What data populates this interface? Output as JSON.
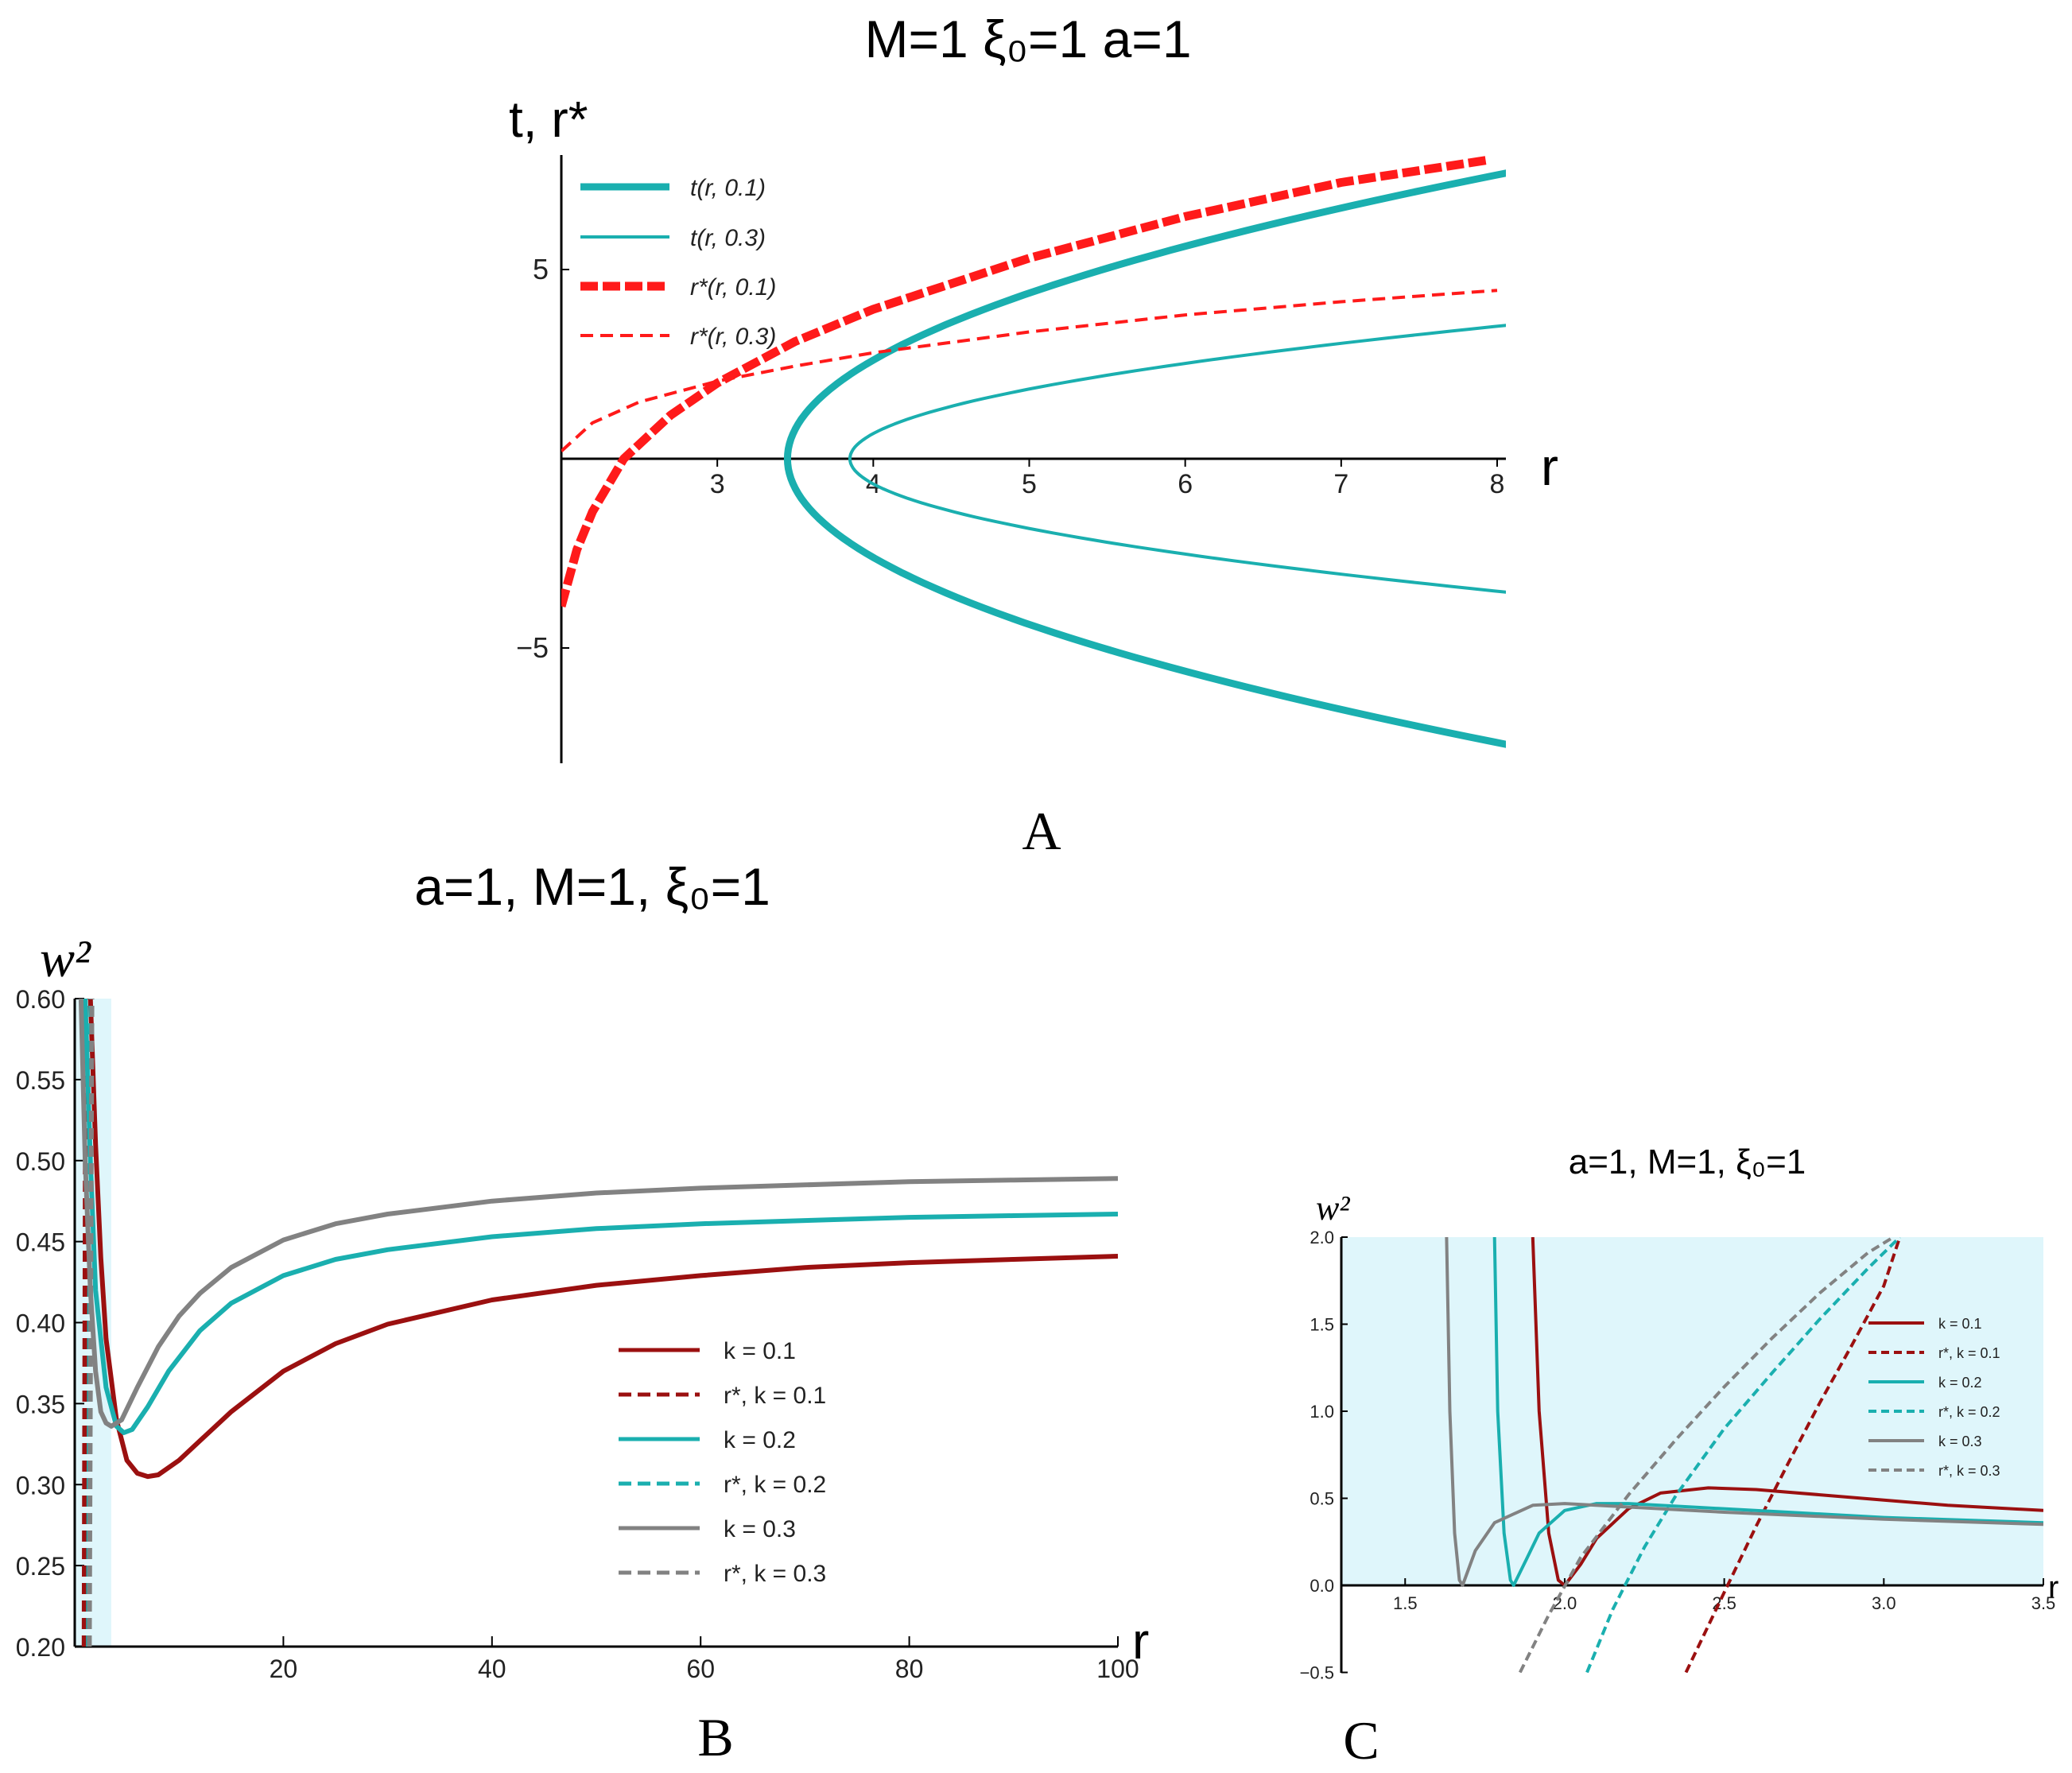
{
  "colors": {
    "teal": "#1aafaf",
    "red": "#ff1a1a",
    "darkred": "#9b1010",
    "gray": "#828282",
    "shade": "#dff6fb"
  },
  "panel_labels": [
    "A",
    "B",
    "C"
  ],
  "chart_data": [
    {
      "id": "A",
      "type": "line",
      "title": "M=1 ξ₀=1  a=1",
      "xlabel": "r",
      "ylabel": "t, r*",
      "xlim": [
        2,
        8
      ],
      "ylim": [
        -8,
        8
      ],
      "xticks": [
        "3",
        "4",
        "5",
        "6",
        "7",
        "8"
      ],
      "yticks": [
        "5",
        "−5"
      ],
      "series": [
        {
          "name": "t(r, 0.1)",
          "style": "solid-thick",
          "color": "#1aafaf",
          "r0": 3.45,
          "x_end": 8.0,
          "y_end": 7.5
        },
        {
          "name": "t(r, 0.3)",
          "style": "solid-thin",
          "color": "#1aafaf",
          "r0": 3.85,
          "x_end": 8.0,
          "y_end": 3.5
        },
        {
          "name": "r*(r, 0.1)",
          "style": "dashed-thick",
          "color": "#ff1a1a",
          "x": [
            2.0,
            2.1,
            2.2,
            2.4,
            2.7,
            3.0,
            3.5,
            4.0,
            5.0,
            6.0,
            7.0,
            7.95
          ],
          "y": [
            -3.9,
            -2.4,
            -1.4,
            0.0,
            1.15,
            2.0,
            3.1,
            3.95,
            5.3,
            6.4,
            7.3,
            7.9
          ]
        },
        {
          "name": "r*(r, 0.3)",
          "style": "dashed-thin",
          "color": "#ff1a1a",
          "x": [
            2.0,
            2.2,
            2.5,
            3.0,
            3.5,
            4.0,
            5.0,
            6.0,
            7.0,
            8.0
          ],
          "y": [
            0.2,
            0.95,
            1.5,
            2.05,
            2.45,
            2.8,
            3.35,
            3.8,
            4.15,
            4.45
          ]
        }
      ]
    },
    {
      "id": "B",
      "type": "line",
      "title": "a=1, M=1, ξ₀=1",
      "xlabel": "r",
      "ylabel": "w²",
      "xlim": [
        0,
        100
      ],
      "ylim": [
        0.2,
        0.6
      ],
      "xticks": [
        "20",
        "40",
        "60",
        "80",
        "100"
      ],
      "yticks": [
        "0.20",
        "0.25",
        "0.30",
        "0.35",
        "0.40",
        "0.45",
        "0.50",
        "0.55",
        "0.60"
      ],
      "shaded_x": [
        0,
        3.5
      ],
      "series": [
        {
          "name": "k = 0.1",
          "style": "solid",
          "color": "#9b1010",
          "x": [
            1.5,
            2.0,
            2.5,
            3.0,
            4.0,
            5.0,
            6.0,
            7.0,
            8.0,
            10.0,
            12.0,
            15.0,
            20.0,
            25.0,
            30.0,
            40.0,
            50.0,
            60.0,
            70.0,
            80.0,
            90.0,
            100.0
          ],
          "y": [
            0.6,
            0.51,
            0.44,
            0.39,
            0.34,
            0.315,
            0.307,
            0.305,
            0.306,
            0.315,
            0.327,
            0.345,
            0.37,
            0.387,
            0.399,
            0.414,
            0.423,
            0.429,
            0.434,
            0.437,
            0.439,
            0.441
          ]
        },
        {
          "name": "r*, k = 0.1",
          "style": "dashed",
          "color": "#9b1010",
          "x": [
            0.9,
            1.05
          ],
          "y": [
            0.2,
            0.6
          ]
        },
        {
          "name": "k = 0.2",
          "style": "solid",
          "color": "#1aafaf",
          "x": [
            1.0,
            1.5,
            2.0,
            3.0,
            4.0,
            4.7,
            5.5,
            7.0,
            9.0,
            12.0,
            15.0,
            20.0,
            25.0,
            30.0,
            40.0,
            50.0,
            60.0,
            70.0,
            80.0,
            90.0,
            100.0
          ],
          "y": [
            0.6,
            0.5,
            0.42,
            0.36,
            0.336,
            0.332,
            0.334,
            0.348,
            0.37,
            0.395,
            0.412,
            0.429,
            0.439,
            0.445,
            0.453,
            0.458,
            0.461,
            0.463,
            0.465,
            0.466,
            0.467
          ]
        },
        {
          "name": "r*, k = 0.2",
          "style": "dashed",
          "color": "#1aafaf",
          "x": [
            1.3,
            1.55
          ],
          "y": [
            0.2,
            0.6
          ]
        },
        {
          "name": "k = 0.3",
          "style": "solid",
          "color": "#828282",
          "x": [
            0.6,
            1.0,
            1.5,
            2.0,
            2.5,
            3.0,
            3.5,
            4.5,
            6.0,
            8.0,
            10.0,
            12.0,
            15.0,
            20.0,
            25.0,
            30.0,
            40.0,
            50.0,
            60.0,
            70.0,
            80.0,
            90.0,
            100.0
          ],
          "y": [
            0.6,
            0.5,
            0.42,
            0.37,
            0.345,
            0.338,
            0.336,
            0.34,
            0.36,
            0.385,
            0.404,
            0.418,
            0.434,
            0.451,
            0.461,
            0.467,
            0.475,
            0.48,
            0.483,
            0.485,
            0.487,
            0.488,
            0.489
          ]
        },
        {
          "name": "r*, k = 0.3",
          "style": "dashed",
          "color": "#828282",
          "x": [
            1.4,
            1.65
          ],
          "y": [
            0.2,
            0.6
          ]
        }
      ]
    },
    {
      "id": "C",
      "type": "line",
      "title": "a=1, M=1, ξ₀=1",
      "xlabel": "r",
      "ylabel": "w²",
      "xlim": [
        1.3,
        3.5
      ],
      "ylim": [
        -0.5,
        2.0
      ],
      "xticks": [
        "1.5",
        "2.0",
        "2.5",
        "3.0",
        "3.5"
      ],
      "yticks": [
        "−0.5",
        "0.0",
        "0.5",
        "1.0",
        "1.5",
        "2.0"
      ],
      "shaded_x": [
        1.3,
        3.5
      ],
      "shaded_y": [
        0.0,
        2.0
      ],
      "series": [
        {
          "name": "k = 0.1",
          "style": "solid",
          "color": "#9b1010",
          "x": [
            1.9,
            1.92,
            1.95,
            1.98,
            2.0,
            2.05,
            2.1,
            2.2,
            2.3,
            2.45,
            2.6,
            2.8,
            3.0,
            3.2,
            3.5
          ],
          "y": [
            2.0,
            1.0,
            0.3,
            0.03,
            0.0,
            0.12,
            0.27,
            0.44,
            0.53,
            0.56,
            0.55,
            0.52,
            0.49,
            0.46,
            0.43
          ]
        },
        {
          "name": "r*, k = 0.1",
          "style": "dashed",
          "color": "#9b1010",
          "x": [
            2.38,
            2.5,
            2.6,
            2.7,
            2.8,
            2.9,
            3.0,
            3.05
          ],
          "y": [
            -0.5,
            -0.04,
            0.34,
            0.7,
            1.05,
            1.38,
            1.72,
            2.0
          ]
        },
        {
          "name": "k = 0.2",
          "style": "solid",
          "color": "#1aafaf",
          "x": [
            1.78,
            1.79,
            1.81,
            1.83,
            1.84,
            1.88,
            1.92,
            2.0,
            2.1,
            2.2,
            2.4,
            2.7,
            3.0,
            3.5
          ],
          "y": [
            2.0,
            1.0,
            0.3,
            0.03,
            0.0,
            0.15,
            0.3,
            0.43,
            0.47,
            0.47,
            0.45,
            0.42,
            0.39,
            0.36
          ]
        },
        {
          "name": "r*, k = 0.2",
          "style": "dashed",
          "color": "#1aafaf",
          "x": [
            2.07,
            2.15,
            2.25,
            2.35,
            2.5,
            2.65,
            2.8,
            2.95,
            3.05
          ],
          "y": [
            -0.5,
            -0.14,
            0.22,
            0.52,
            0.9,
            1.22,
            1.53,
            1.82,
            2.0
          ]
        },
        {
          "name": "k = 0.3",
          "style": "solid",
          "color": "#828282",
          "x": [
            1.63,
            1.64,
            1.655,
            1.67,
            1.68,
            1.72,
            1.78,
            1.9,
            2.0,
            2.2,
            2.5,
            3.0,
            3.5
          ],
          "y": [
            2.0,
            1.0,
            0.3,
            0.03,
            0.0,
            0.2,
            0.36,
            0.46,
            0.47,
            0.45,
            0.42,
            0.38,
            0.35
          ]
        },
        {
          "name": "r*, k = 0.3",
          "style": "dashed",
          "color": "#828282",
          "x": [
            1.86,
            1.95,
            2.05,
            2.2,
            2.35,
            2.5,
            2.65,
            2.8,
            2.95,
            3.03
          ],
          "y": [
            -0.5,
            -0.17,
            0.16,
            0.52,
            0.84,
            1.14,
            1.42,
            1.68,
            1.91,
            2.0
          ]
        }
      ]
    }
  ]
}
